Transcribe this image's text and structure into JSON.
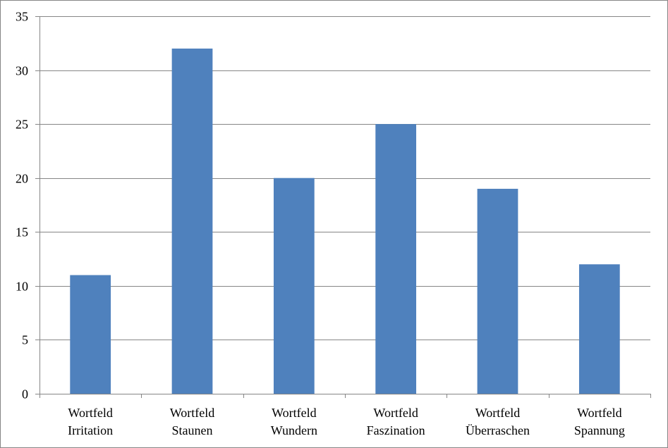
{
  "chart_data": {
    "type": "bar",
    "categories": [
      [
        "Wortfeld",
        "Irritation"
      ],
      [
        "Wortfeld",
        "Staunen"
      ],
      [
        "Wortfeld",
        "Wundern"
      ],
      [
        "Wortfeld",
        "Faszination"
      ],
      [
        "Wortfeld",
        "Überraschen"
      ],
      [
        "Wortfeld",
        "Spannung"
      ]
    ],
    "values": [
      11,
      32,
      20,
      25,
      19,
      12
    ],
    "ylim": [
      0,
      35
    ],
    "yticks": [
      "0",
      "5",
      "10",
      "15",
      "20",
      "25",
      "30",
      "35"
    ],
    "grid": true,
    "legend": "none",
    "colors": {
      "bar": "#4f81bd",
      "grid": "#868686",
      "axis": "#868686"
    }
  }
}
